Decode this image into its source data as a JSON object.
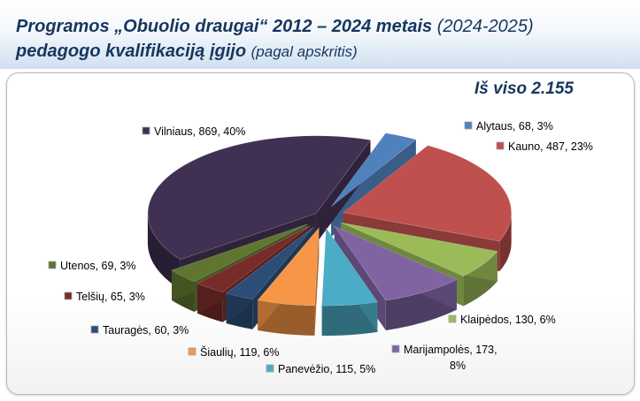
{
  "header": {
    "title_bold_1": "Programos „Obuolio draugai“ 2012 – 2024 metais",
    "title_light_1": "(2024-2025)",
    "title_bold_2": "pedagogo kvalifikaciją įgijo",
    "title_light_2": "(pagal apskritis)"
  },
  "total_label": "Iš viso 2.155",
  "chart_data": {
    "type": "pie",
    "style": "3d-exploded",
    "total": 2155,
    "legend": "none",
    "slices": [
      {
        "name": "Alytaus",
        "value": 68,
        "percent": 3,
        "color": "#4f81bd",
        "label": "Alytaus, 68, 3%"
      },
      {
        "name": "Kauno",
        "value": 487,
        "percent": 23,
        "color": "#c0504d",
        "label": "Kauno, 487, 23%"
      },
      {
        "name": "Klaipėdos",
        "value": 130,
        "percent": 6,
        "color": "#9bbb59",
        "label": "Klaipėdos, 130, 6%"
      },
      {
        "name": "Marijampolės",
        "value": 173,
        "percent": 8,
        "color": "#8064a2",
        "label": "Marijampolės, 173,",
        "label_2": "8%"
      },
      {
        "name": "Panevėžio",
        "value": 115,
        "percent": 5,
        "color": "#4bacc6",
        "label": "Panevėžio, 115, 5%"
      },
      {
        "name": "Šiaulių",
        "value": 119,
        "percent": 6,
        "color": "#f79646",
        "label": "Šiaulių, 119, 6%"
      },
      {
        "name": "Tauragės",
        "value": 60,
        "percent": 3,
        "color": "#2c4d75",
        "label": "Tauragės, 60, 3%"
      },
      {
        "name": "Telšių",
        "value": 65,
        "percent": 3,
        "color": "#772c2a",
        "label": "Telšių, 65, 3%"
      },
      {
        "name": "Utenos",
        "value": 69,
        "percent": 3,
        "color": "#5f7530",
        "label": "Utenos, 69, 3%"
      },
      {
        "name": "Vilniaus",
        "value": 869,
        "percent": 40,
        "color": "#403152",
        "label": "Vilniaus, 869, 40%"
      }
    ]
  }
}
